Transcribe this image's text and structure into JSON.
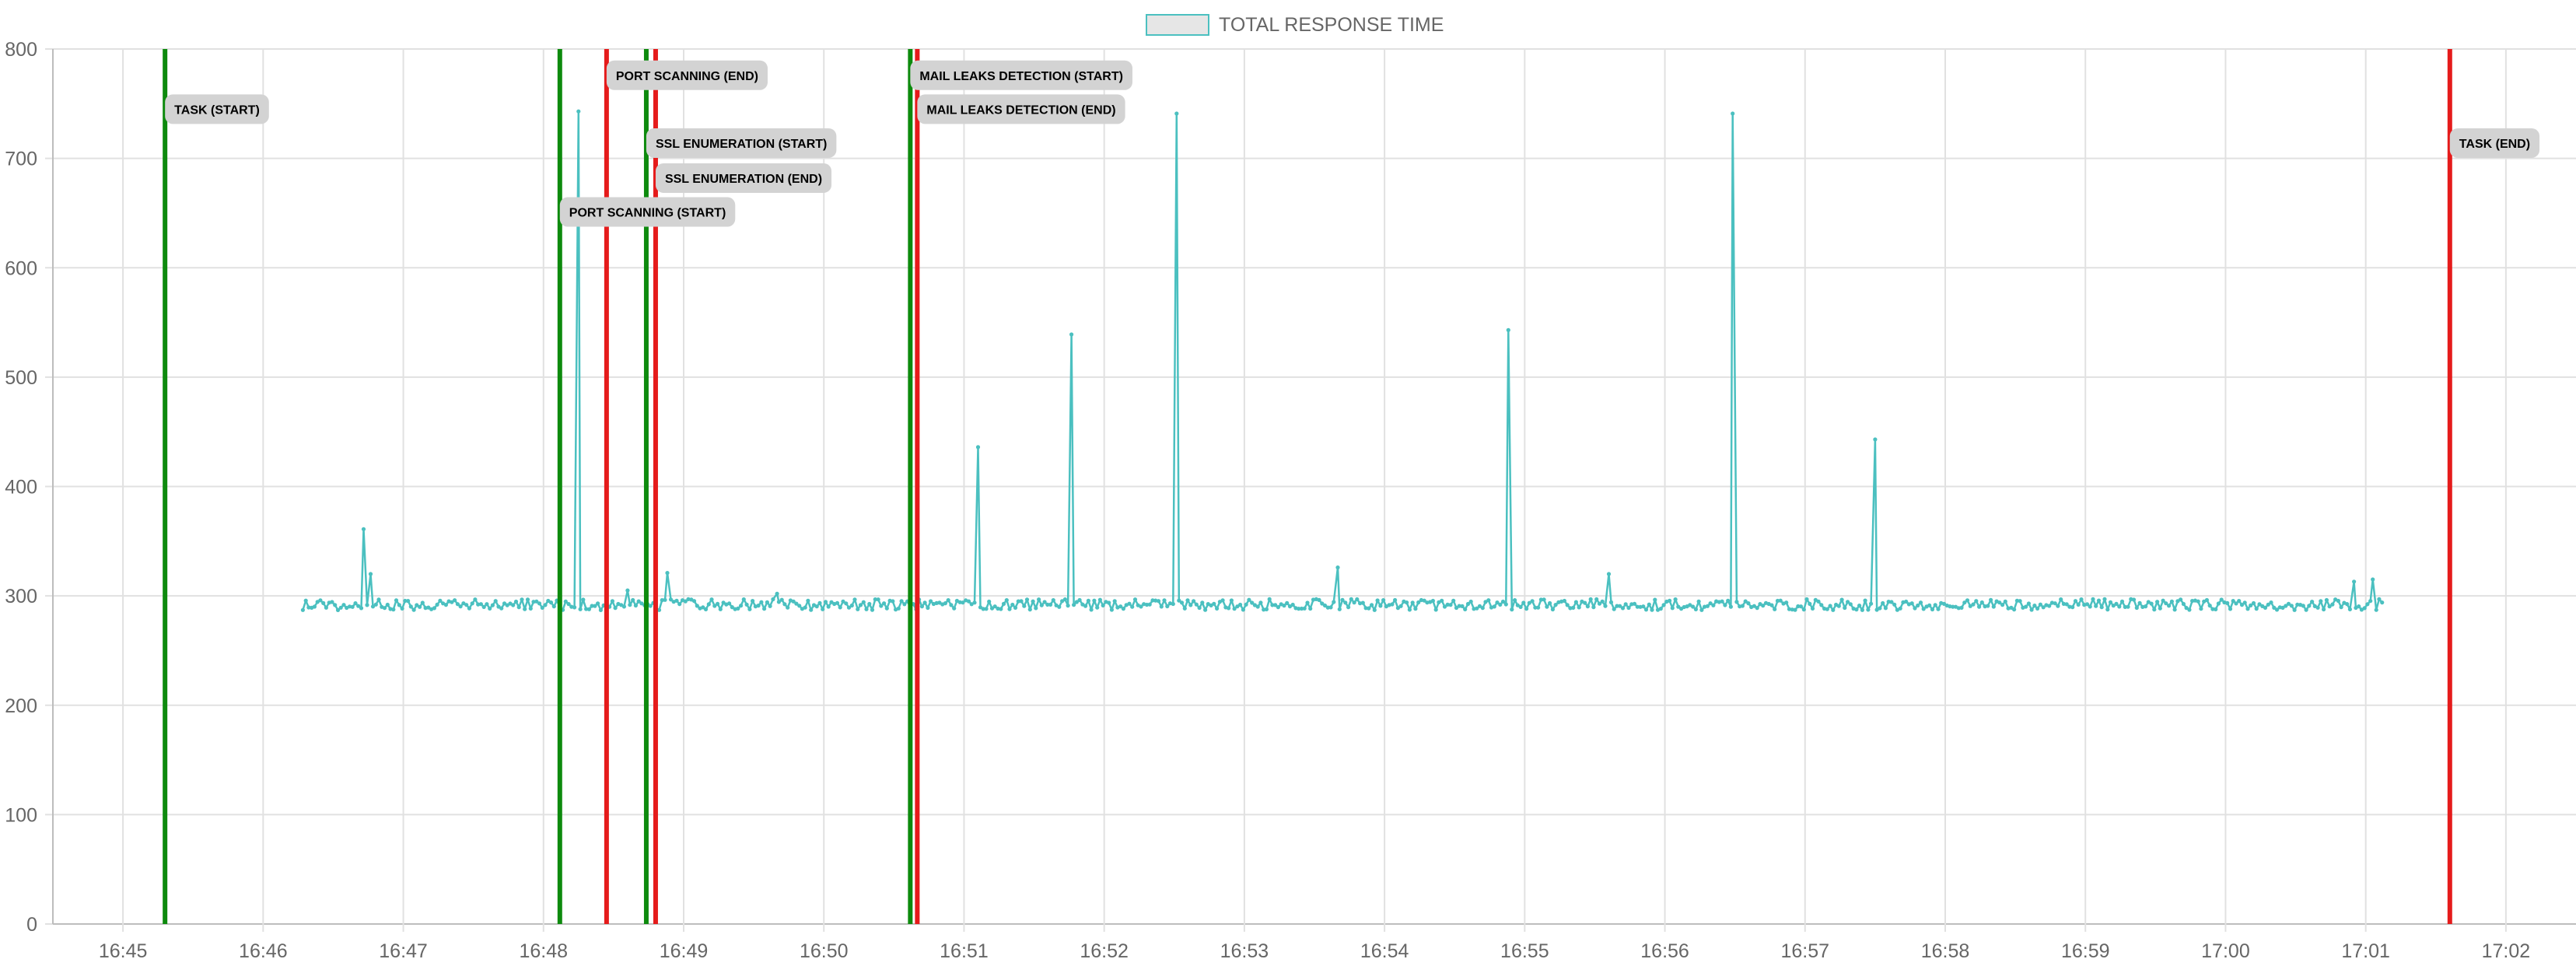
{
  "chart_data": {
    "type": "line",
    "title": "",
    "xlabel": "",
    "ylabel": "",
    "legend": {
      "position": "top-center",
      "entries": [
        {
          "label": "TOTAL RESPONSE TIME",
          "color": "#4bc0c0",
          "fill": "#e6e6e6"
        }
      ]
    },
    "grid": true,
    "x_axis": {
      "type": "time",
      "range": [
        "16:44:30",
        "17:02:30"
      ],
      "ticks": [
        "16:45",
        "16:46",
        "16:47",
        "16:48",
        "16:49",
        "16:50",
        "16:51",
        "16:52",
        "16:53",
        "16:54",
        "16:55",
        "16:56",
        "16:57",
        "16:58",
        "16:59",
        "17:00",
        "17:01",
        "17:02"
      ]
    },
    "y_axis": {
      "range": [
        0,
        800
      ],
      "ticks": [
        0,
        100,
        200,
        300,
        400,
        500,
        600,
        700,
        800
      ]
    },
    "series": [
      {
        "name": "TOTAL RESPONSE TIME",
        "color": "#4bc0c0",
        "time_range": [
          "16:46:17",
          "17:01:07"
        ],
        "baseline": 292,
        "noise": 5,
        "spikes": [
          {
            "time": "16:46:43",
            "value": 361
          },
          {
            "time": "16:46:46",
            "value": 320
          },
          {
            "time": "16:48:15",
            "value": 743
          },
          {
            "time": "16:48:36",
            "value": 305
          },
          {
            "time": "16:48:53",
            "value": 321
          },
          {
            "time": "16:49:40",
            "value": 302
          },
          {
            "time": "16:51:06",
            "value": 436
          },
          {
            "time": "16:51:46",
            "value": 539
          },
          {
            "time": "16:52:31",
            "value": 741
          },
          {
            "time": "16:53:40",
            "value": 326
          },
          {
            "time": "16:54:53",
            "value": 543
          },
          {
            "time": "16:55:36",
            "value": 320
          },
          {
            "time": "16:56:29",
            "value": 741
          },
          {
            "time": "16:57:30",
            "value": 443
          },
          {
            "time": "17:00:55",
            "value": 313
          },
          {
            "time": "17:01:03",
            "value": 315
          }
        ]
      }
    ],
    "annotations": [
      {
        "label": "TASK (START)",
        "time": "16:45:18",
        "color": "green",
        "label_y": 745
      },
      {
        "label": "PORT SCANNING (START)",
        "time": "16:48:07",
        "color": "green",
        "label_y": 651
      },
      {
        "label": "PORT SCANNING (END)",
        "time": "16:48:27",
        "color": "red",
        "label_y": 776
      },
      {
        "label": "SSL ENUMERATION (START)",
        "time": "16:48:44",
        "color": "green",
        "label_y": 714
      },
      {
        "label": "SSL ENUMERATION (END)",
        "time": "16:48:48",
        "color": "red",
        "label_y": 682
      },
      {
        "label": "MAIL LEAKS DETECTION (START)",
        "time": "16:50:37",
        "color": "green",
        "label_y": 776
      },
      {
        "label": "MAIL LEAKS DETECTION (END)",
        "time": "16:50:40",
        "color": "red",
        "label_y": 745
      },
      {
        "label": "TASK (END)",
        "time": "17:01:36",
        "color": "red",
        "label_y": 714
      }
    ]
  }
}
